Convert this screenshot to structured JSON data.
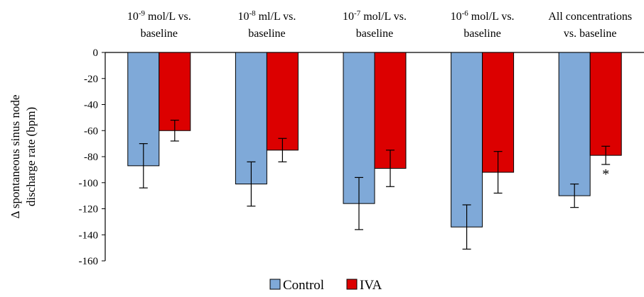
{
  "chart_data": {
    "type": "bar",
    "categories": [
      {
        "prefix": "10",
        "sup": "-9",
        "line1": " mol/L vs.",
        "line2": "baseline"
      },
      {
        "prefix": "10",
        "sup": "-8",
        "line1": " ml/L vs.",
        "line2": "baseline"
      },
      {
        "prefix": "10",
        "sup": "-7",
        "line1": " mol/L vs.",
        "line2": "baseline"
      },
      {
        "prefix": "10",
        "sup": "-6",
        "line1": " mol/L vs.",
        "line2": "baseline"
      },
      {
        "prefix": "",
        "sup": "",
        "line1": "All concentrations",
        "line2": "vs. baseline"
      }
    ],
    "series": [
      {
        "name": "Control",
        "color": "#7fa9d8",
        "values": [
          -87,
          -101,
          -116,
          -134,
          -110
        ],
        "errors": [
          17,
          17,
          20,
          17,
          9
        ]
      },
      {
        "name": "IVA",
        "color": "#dc0000",
        "values": [
          -60,
          -75,
          -89,
          -92,
          -79
        ],
        "errors": [
          8,
          9,
          14,
          16,
          7
        ]
      }
    ],
    "ylabel_lines": [
      "Δ spontaneous sinus node",
      "discharge rate (bpm)"
    ],
    "ylim": [
      -160,
      0
    ],
    "yticks": [
      0,
      -20,
      -40,
      -60,
      -80,
      -100,
      -120,
      -140,
      -160
    ],
    "annotations": [
      {
        "category": 4,
        "series": 1,
        "text": "*"
      }
    ],
    "legend_position": "bottom-center",
    "grid": false
  }
}
